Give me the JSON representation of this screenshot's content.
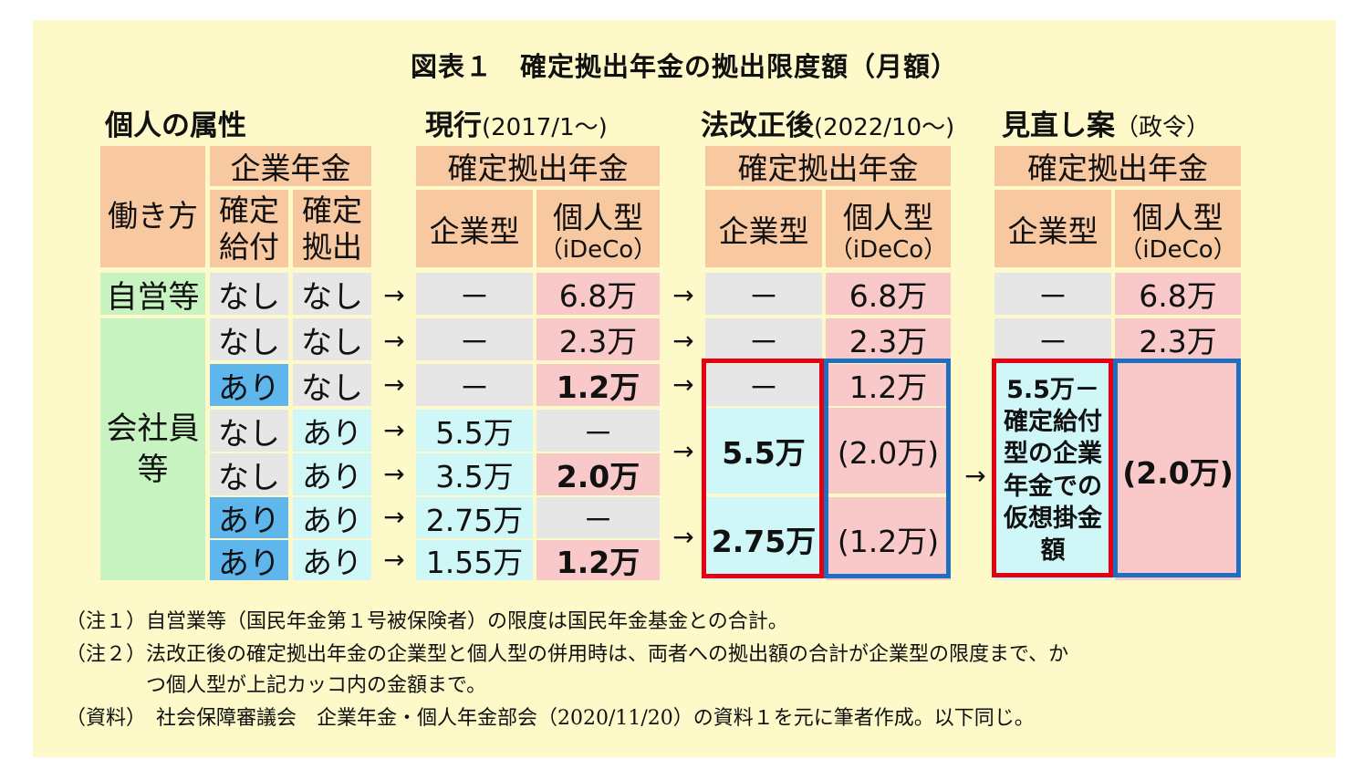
{
  "title": "図表１　確定拠出年金の拠出限度額（月額）",
  "headers": {
    "attr": "個人の属性",
    "current": "現行",
    "current_sub": "(2017/1～)",
    "reform": "法改正後",
    "reform_sub": "(2022/10～)",
    "proposal": "見直し案",
    "proposal_sub": "（政令）"
  },
  "table_head": {
    "work_style": "働き方",
    "corp_pension": "企業年金",
    "db": "確定\n給付",
    "dc": "確定\n拠出",
    "dc_pension": "確定拠出年金",
    "corp_type": "企業型",
    "ind_type": "個人型",
    "ideco": "（iDeCo）"
  },
  "groups": {
    "self": "自営等",
    "employee": "会社員\n等"
  },
  "arrow": "→",
  "rows": [
    {
      "db": "なし",
      "dc": "なし",
      "cur_corp": "－",
      "cur_ind": "6.8万",
      "new_corp": "－",
      "new_ind": "6.8万",
      "prop_corp": "－",
      "prop_ind": "6.8万"
    },
    {
      "db": "なし",
      "dc": "なし",
      "cur_corp": "－",
      "cur_ind": "2.3万",
      "new_corp": "－",
      "new_ind": "2.3万",
      "prop_corp": "－",
      "prop_ind": "2.3万"
    },
    {
      "db": "あり",
      "dc": "なし",
      "cur_corp": "－",
      "cur_ind": "1.2万",
      "new_corp": "－",
      "new_ind": "1.2万"
    },
    {
      "db": "なし",
      "dc": "あり",
      "cur_corp": "5.5万",
      "cur_ind": "－"
    },
    {
      "db": "なし",
      "dc": "あり",
      "cur_corp": "3.5万",
      "cur_ind": "2.0万"
    },
    {
      "db": "あり",
      "dc": "あり",
      "cur_corp": "2.75万",
      "cur_ind": "－"
    },
    {
      "db": "あり",
      "dc": "あり",
      "cur_corp": "1.55万",
      "cur_ind": "1.2万"
    }
  ],
  "merged": {
    "new_corp_a": "5.5万",
    "new_ind_a": "(2.0万)",
    "new_corp_b": "2.75万",
    "new_ind_b": "(1.2万)",
    "prop_corp": "5.5万－\n確定給付\n型の企業\n年金での\n仮想掛金\n額",
    "prop_ind": "(2.0万)"
  },
  "notes": [
    "（注１）自営業等（国民年金第１号被保険者）の限度は国民年金基金との合計。",
    "（注２）法改正後の確定拠出年金の企業型と個人型の併用時は、両者への拠出額の合計が企業型の限度まで、か",
    "　　　　つ個人型が上記カッコ内の金額まで。",
    "（資料）　社会保障審議会　企業年金・個人年金部会（2020/11/20）の資料１を元に筆者作成。以下同じ。"
  ],
  "colors": {
    "background": "#fdf9c8",
    "header_orange": "#f8c8a0",
    "green": "#c6f3c0",
    "blue_cell": "#5eb6ec",
    "gray": "#e6e6e6",
    "pink": "#f9c8c8",
    "cyan": "#cff7f8",
    "red_frame": "#e60012",
    "blue_frame": "#1f6fc0"
  }
}
